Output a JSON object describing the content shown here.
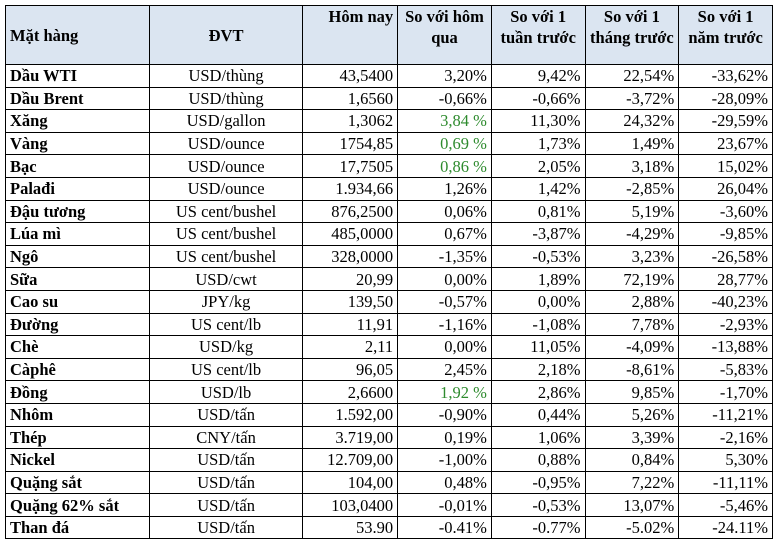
{
  "columns": [
    "Mặt hàng",
    "ĐVT",
    "Hôm nay",
    "So với hôm qua",
    "So với 1 tuần trước",
    "So với 1 tháng trước",
    "So với 1 năm trước"
  ],
  "rows": [
    {
      "name": "Dầu WTI",
      "unit": "USD/thùng",
      "today": "43,5400",
      "vs_day": "3,20%",
      "vs_week": "9,42%",
      "vs_month": "22,54%",
      "vs_year": "-33,62%"
    },
    {
      "name": "Dầu Brent",
      "unit": "USD/thùng",
      "today": "1,6560",
      "vs_day": "-0,66%",
      "vs_week": "-0,66%",
      "vs_month": "-3,72%",
      "vs_year": "-28,09%"
    },
    {
      "name": "Xăng",
      "unit": "USD/gallon",
      "today": "1,3062",
      "vs_day": "3,84 %",
      "vs_week": "11,30%",
      "vs_month": "24,32%",
      "vs_year": "-29,59%",
      "vs_day_green": true
    },
    {
      "name": "Vàng",
      "unit": "USD/ounce",
      "today": "1754,85",
      "vs_day": "0,69 %",
      "vs_week": "1,73%",
      "vs_month": "1,49%",
      "vs_year": "23,67%",
      "vs_day_green": true
    },
    {
      "name": "Bạc",
      "unit": "USD/ounce",
      "today": "17,7505",
      "vs_day": "0,86 %",
      "vs_week": "2,05%",
      "vs_month": "3,18%",
      "vs_year": "15,02%",
      "vs_day_green": true
    },
    {
      "name": "Palađi",
      "unit": "USD/ounce",
      "today": "1.934,66",
      "vs_day": "1,26%",
      "vs_week": "1,42%",
      "vs_month": "-2,85%",
      "vs_year": "26,04%"
    },
    {
      "name": "Đậu tương",
      "unit": "US cent/bushel",
      "today": "876,2500",
      "vs_day": "0,06%",
      "vs_week": "0,81%",
      "vs_month": "5,19%",
      "vs_year": "-3,60%"
    },
    {
      "name": "Lúa mì",
      "unit": "US cent/bushel",
      "today": "485,0000",
      "vs_day": "0,67%",
      "vs_week": "-3,87%",
      "vs_month": "-4,29%",
      "vs_year": "-9,85%"
    },
    {
      "name": "Ngô",
      "unit": "US cent/bushel",
      "today": "328,0000",
      "vs_day": "-1,35%",
      "vs_week": "-0,53%",
      "vs_month": "3,23%",
      "vs_year": "-26,58%"
    },
    {
      "name": "Sữa",
      "unit": "USD/cwt",
      "today": "20,99",
      "vs_day": "0,00%",
      "vs_week": "1,89%",
      "vs_month": "72,19%",
      "vs_year": "28,77%"
    },
    {
      "name": "Cao su",
      "unit": "JPY/kg",
      "today": "139,50",
      "vs_day": "-0,57%",
      "vs_week": "0,00%",
      "vs_month": "2,88%",
      "vs_year": "-40,23%"
    },
    {
      "name": "Đường",
      "unit": "US cent/lb",
      "today": "11,91",
      "vs_day": "-1,16%",
      "vs_week": "-1,08%",
      "vs_month": "7,78%",
      "vs_year": "-2,93%"
    },
    {
      "name": "Chè",
      "unit": "USD/kg",
      "today": "2,11",
      "vs_day": "0,00%",
      "vs_week": "11,05%",
      "vs_month": "-4,09%",
      "vs_year": "-13,88%"
    },
    {
      "name": "Càphê",
      "unit": "US cent/lb",
      "today": "96,05",
      "vs_day": "2,45%",
      "vs_week": "2,18%",
      "vs_month": "-8,61%",
      "vs_year": "-5,83%"
    },
    {
      "name": "Đồng",
      "unit": "USD/lb",
      "today": "2,6600",
      "vs_day": "1,92 %",
      "vs_week": "2,86%",
      "vs_month": "9,85%",
      "vs_year": "-1,70%",
      "vs_day_green": true
    },
    {
      "name": "Nhôm",
      "unit": "USD/tấn",
      "today": "1.592,00",
      "vs_day": "-0,90%",
      "vs_week": "0,44%",
      "vs_month": "5,26%",
      "vs_year": "-11,21%"
    },
    {
      "name": "Thép",
      "unit": "CNY/tấn",
      "today": "3.719,00",
      "vs_day": "0,19%",
      "vs_week": "1,06%",
      "vs_month": "3,39%",
      "vs_year": "-2,16%"
    },
    {
      "name": "Nickel",
      "unit": "USD/tấn",
      "today": "12.709,00",
      "vs_day": "-1,00%",
      "vs_week": "0,88%",
      "vs_month": "0,84%",
      "vs_year": "5,30%"
    },
    {
      "name": "Quặng sắt",
      "unit": "USD/tấn",
      "today": "104,00",
      "vs_day": "0,48%",
      "vs_week": "-0,95%",
      "vs_month": "7,22%",
      "vs_year": "-11,11%"
    },
    {
      "name": "Quặng 62% sắt",
      "unit": "USD/tấn",
      "today": "103,0400",
      "vs_day": "-0,01%",
      "vs_week": "-0,53%",
      "vs_month": "13,07%",
      "vs_year": "-5,46%"
    },
    {
      "name": "Than đá",
      "unit": "USD/tấn",
      "today": "53.90",
      "vs_day": "-0.41%",
      "vs_week": "-0.77%",
      "vs_month": "-5.02%",
      "vs_year": "-24.11%"
    }
  ],
  "colors": {
    "header_bg": "#dbe5f1",
    "positive_green": "#2e8b2e",
    "text": "#000000"
  }
}
